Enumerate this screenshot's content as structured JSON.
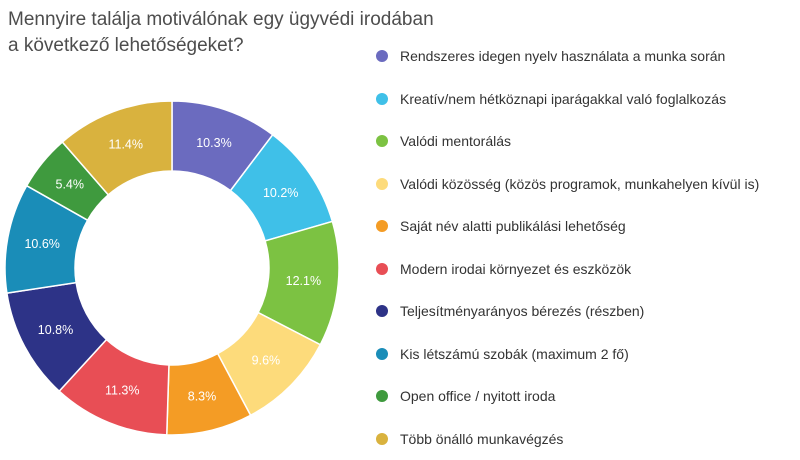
{
  "chart_data": {
    "type": "pie",
    "title": "Mennyire találja motiválónak egy ügyvédi irodában a következő lehetőségeket?",
    "categories": [
      "Rendszeres idegen nyelv használata a munka során",
      "Kreatív/nem hétköznapi iparágakkal való foglalkozás",
      "Valódi mentorálás",
      "Valódi közösség (közös programok, munkahelyen kívül is)",
      "Saját név alatti publikálási lehetőség",
      "Modern irodai környezet és eszközök",
      "Teljesítményarányos bérezés (részben)",
      "Kis létszámú szobák (maximum 2 fő)",
      "Open office / nyitott iroda",
      "Több önálló munkavégzés"
    ],
    "values": [
      10.3,
      10.2,
      12.1,
      9.6,
      8.3,
      11.3,
      10.8,
      10.6,
      5.4,
      11.4
    ],
    "labels": [
      "10.3%",
      "10.2%",
      "12.1%",
      "9.6%",
      "8.3%",
      "11.3%",
      "10.8%",
      "10.6%",
      "5.4%",
      "11.4%"
    ],
    "colors": [
      "#6b6bbf",
      "#3fc0e8",
      "#7cc242",
      "#fddb7b",
      "#f49c25",
      "#e84e55",
      "#2d3387",
      "#1a8db8",
      "#3f9a3e",
      "#d9b23e"
    ],
    "donut": true,
    "legend_position": "right"
  }
}
